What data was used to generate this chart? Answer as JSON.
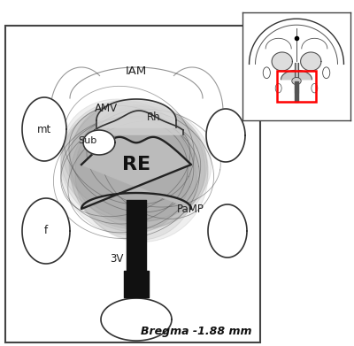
{
  "title": "Bregma -1.88 mm",
  "background_color": "#ffffff",
  "border_color": "#444444",
  "label_RE": "RE",
  "label_IAM": "IAM",
  "label_AMV": "AMV",
  "label_Rh": "Rh",
  "label_Sub": "Sub",
  "label_mt": "mt",
  "label_f": "f",
  "label_3V": "3V",
  "label_PaMP": "PaMP",
  "gray_fill": "#bbbbbb",
  "light_gray": "#cccccc",
  "overlay_alpha": 0.13,
  "structure_lw": 1.2,
  "dark_fill": "#111111",
  "inset_border": "#ff0000"
}
